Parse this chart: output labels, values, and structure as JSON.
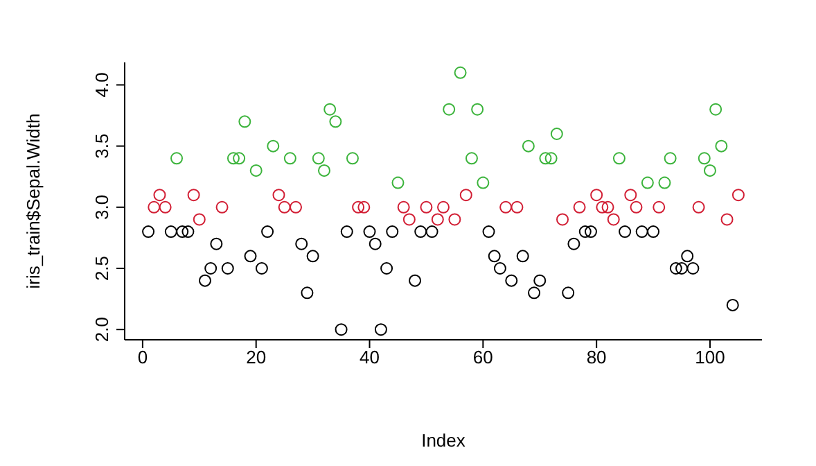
{
  "chart_data": {
    "type": "scatter",
    "xlabel": "Index",
    "ylabel": "iris_train$Sepal.Width",
    "xlim": [
      -3.16,
      109.16
    ],
    "ylim": [
      1.916,
      4.184
    ],
    "xticks": [
      0,
      20,
      40,
      60,
      80,
      100
    ],
    "yticks": [
      {
        "value": 2,
        "label": "2.0"
      },
      {
        "value": 2.5,
        "label": "2.5"
      },
      {
        "value": 3,
        "label": "3.0"
      },
      {
        "value": 3.5,
        "label": "3.5"
      },
      {
        "value": 4,
        "label": "4.0"
      }
    ],
    "grid": false,
    "legend": false,
    "marker": "circle",
    "series": [
      {
        "color": "#000000",
        "x": [
          1,
          5,
          7,
          8,
          11,
          12,
          13,
          15,
          19,
          21,
          22,
          28,
          29,
          30,
          35,
          36,
          40,
          41,
          42,
          43,
          44,
          48,
          49,
          51,
          61,
          62,
          63,
          65,
          67,
          69,
          70,
          75,
          76,
          78,
          79,
          85,
          88,
          90,
          94,
          95,
          96,
          97,
          104
        ],
        "values": [
          2.8,
          2.8,
          2.8,
          2.8,
          2.4,
          2.5,
          2.7,
          2.5,
          2.6,
          2.5,
          2.8,
          2.7,
          2.3,
          2.6,
          2.0,
          2.8,
          2.8,
          2.7,
          2.0,
          2.5,
          2.8,
          2.4,
          2.8,
          2.8,
          2.8,
          2.6,
          2.5,
          2.4,
          2.6,
          2.3,
          2.4,
          2.3,
          2.7,
          2.8,
          2.8,
          2.8,
          2.8,
          2.8,
          2.5,
          2.5,
          2.6,
          2.5,
          2.2
        ]
      },
      {
        "color": "#d21e34",
        "x": [
          2,
          3,
          4,
          9,
          10,
          14,
          24,
          25,
          27,
          38,
          39,
          46,
          47,
          50,
          52,
          53,
          55,
          57,
          64,
          66,
          74,
          77,
          80,
          81,
          82,
          83,
          86,
          87,
          91,
          98,
          103,
          105
        ],
        "values": [
          3.0,
          3.1,
          3.0,
          3.1,
          2.9,
          3.0,
          3.1,
          3.0,
          3.0,
          3.0,
          3.0,
          3.0,
          2.9,
          3.0,
          2.9,
          3.0,
          2.9,
          3.1,
          3.0,
          3.0,
          2.9,
          3.0,
          3.1,
          3.0,
          3.0,
          2.9,
          3.1,
          3.0,
          3.0,
          3.0,
          2.9,
          3.1
        ]
      },
      {
        "color": "#3cb43c",
        "x": [
          6,
          16,
          17,
          18,
          20,
          23,
          26,
          31,
          32,
          33,
          34,
          37,
          45,
          54,
          56,
          58,
          59,
          60,
          68,
          71,
          72,
          73,
          84,
          89,
          92,
          93,
          99,
          100,
          101,
          102
        ],
        "values": [
          3.4,
          3.4,
          3.4,
          3.7,
          3.3,
          3.5,
          3.4,
          3.4,
          3.3,
          3.8,
          3.7,
          3.4,
          3.2,
          3.8,
          4.1,
          3.4,
          3.8,
          3.2,
          3.5,
          3.4,
          3.4,
          3.6,
          3.4,
          3.2,
          3.2,
          3.4,
          3.4,
          3.3,
          3.8,
          3.5
        ]
      }
    ]
  }
}
